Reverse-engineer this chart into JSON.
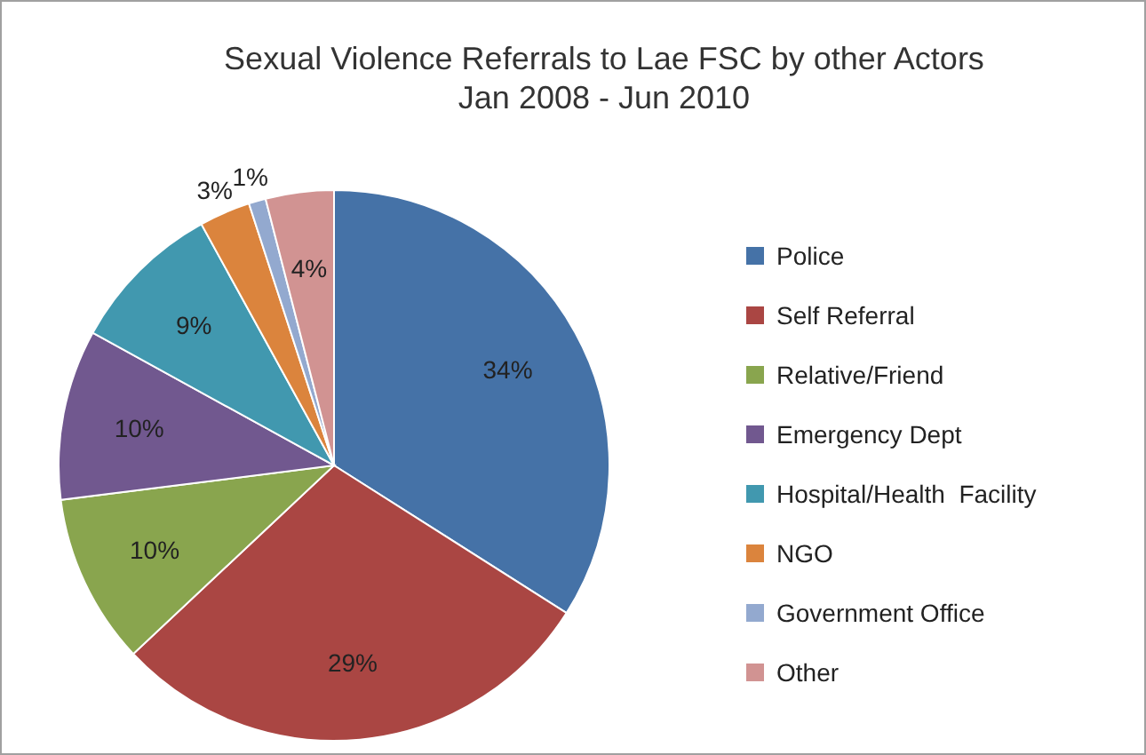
{
  "chart_data": {
    "type": "pie",
    "title": "Sexual Violence Referrals to Lae FSC by other Actors",
    "subtitle": "Jan 2008 - Jun 2010",
    "categories": [
      "Police",
      "Self Referral",
      "Relative/Friend",
      "Emergency Dept",
      "Hospital/Health  Facility",
      "NGO",
      "Government Office",
      "Other"
    ],
    "values": [
      34,
      29,
      10,
      10,
      9,
      3,
      1,
      4
    ],
    "colors": [
      "#4572a7",
      "#aa4643",
      "#89a54e",
      "#71588f",
      "#4198af",
      "#db843d",
      "#93a9cf",
      "#d19392"
    ],
    "value_labels": [
      "34%",
      "29%",
      "10%",
      "10%",
      "9%",
      "3%",
      "1%",
      "4%"
    ],
    "legend": "right"
  }
}
